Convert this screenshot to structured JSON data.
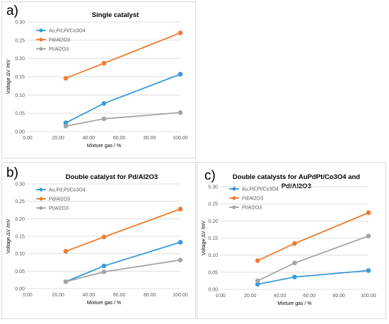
{
  "colors": {
    "blue": "#3a9ad8",
    "orange": "#ed7d31",
    "gray": "#a5a5a5",
    "grid": "#d9d9d9"
  },
  "chart_data": [
    {
      "id": "a",
      "type": "line",
      "panel_label": "a)",
      "title": "Single catalyst",
      "xlabel": "Mixture gas / %",
      "ylabel": "Voltage ΔV /mV",
      "xlim": [
        0,
        100
      ],
      "ylim": [
        0,
        0.3
      ],
      "xticks": [
        "0.00",
        "20.00",
        "40.00",
        "60.00",
        "80.00",
        "100.00"
      ],
      "yticks": [
        "0.00",
        "0.05",
        "0.10",
        "0.15",
        "0.20",
        "0.25",
        "0.30"
      ],
      "grid": "horizontal",
      "legend": "top-left",
      "x": [
        25,
        50,
        100
      ],
      "series": [
        {
          "name": "Au,Pd,Pt/Co3O4",
          "color": "#3a9ad8",
          "values": [
            0.024,
            0.077,
            0.157
          ]
        },
        {
          "name": "Pd/Al2O3",
          "color": "#ed7d31",
          "values": [
            0.146,
            0.187,
            0.27
          ]
        },
        {
          "name": "Pt/Al2O3",
          "color": "#a5a5a5",
          "values": [
            0.015,
            0.035,
            0.052
          ]
        }
      ]
    },
    {
      "id": "b",
      "type": "line",
      "panel_label": "b)",
      "title": "Double catalyst for Pd/Al2O3",
      "xlabel": "Mixture gas / %",
      "ylabel": "Voltage ΔV /mV",
      "xlim": [
        0,
        100
      ],
      "ylim": [
        0,
        0.3
      ],
      "xticks": [
        "0.00",
        "20.00",
        "40.00",
        "60.00",
        "80.00",
        "100.00"
      ],
      "yticks": [
        "0.00",
        "0.05",
        "0.10",
        "0.15",
        "0.20",
        "0.25",
        "0.30"
      ],
      "grid": "horizontal",
      "legend": "top-left",
      "x": [
        25,
        50,
        100
      ],
      "series": [
        {
          "name": "Au,Pd,Pt/Co3O4",
          "color": "#3a9ad8",
          "values": [
            0.02,
            0.065,
            0.133
          ]
        },
        {
          "name": "Pd/Al2O3",
          "color": "#ed7d31",
          "values": [
            0.107,
            0.148,
            0.228
          ]
        },
        {
          "name": "Pt/Al2O3",
          "color": "#a5a5a5",
          "values": [
            0.02,
            0.048,
            0.082
          ]
        }
      ]
    },
    {
      "id": "c",
      "type": "line",
      "panel_label": "c)",
      "title": "Double catalysts for AuPdPt/Co3O4 and Pd/Al2O3",
      "xlabel": "Mixture gas / %",
      "ylabel": "Voltage ΔV /mV",
      "xlim": [
        0,
        100
      ],
      "ylim": [
        0,
        0.3
      ],
      "xticks": [
        "0.00",
        "20.00",
        "40.00",
        "60.00",
        "80.00",
        "100.00"
      ],
      "yticks": [
        "0.00",
        "0.05",
        "0.10",
        "0.15",
        "0.20",
        "0.25",
        "0.30"
      ],
      "grid": "horizontal",
      "legend": "top-left",
      "x": [
        25,
        50,
        100
      ],
      "series": [
        {
          "name": "Au,Pd,Pt/Co3O4",
          "color": "#3a9ad8",
          "values": [
            0.015,
            0.036,
            0.055
          ]
        },
        {
          "name": "Pd/Al2O3",
          "color": "#ed7d31",
          "values": [
            0.084,
            0.134,
            0.224
          ]
        },
        {
          "name": "Pt/Al2O3",
          "color": "#a5a5a5",
          "values": [
            0.025,
            0.077,
            0.156
          ]
        }
      ]
    }
  ]
}
